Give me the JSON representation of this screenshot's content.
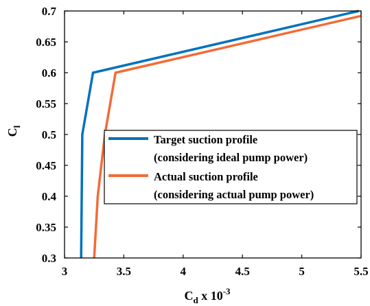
{
  "chart_data": {
    "type": "line",
    "x_axis": {
      "label_main": "C",
      "label_sub": "d",
      "label_suffix": " x 10",
      "label_sup": "-3",
      "lim": [
        3,
        5.5
      ],
      "ticks": [
        3,
        3.5,
        4,
        4.5,
        5,
        5.5
      ],
      "tick_labels": [
        "3",
        "3.5",
        "4",
        "4.5",
        "5",
        "5.5"
      ]
    },
    "y_axis": {
      "label_main": "C",
      "label_sub": "l",
      "lim": [
        0.3,
        0.7
      ],
      "ticks": [
        0.3,
        0.35,
        0.4,
        0.45,
        0.5,
        0.55,
        0.6,
        0.65,
        0.7
      ],
      "tick_labels": [
        "0.3",
        "0.35",
        "0.4",
        "0.45",
        "0.5",
        "0.55",
        "0.6",
        "0.65",
        "0.7"
      ]
    },
    "grid": false,
    "legend_position": "center-right",
    "series": [
      {
        "name_line1": "Target suction profile",
        "name_line2": "(considering ideal pump power)",
        "color": "#0072BD",
        "x": [
          3.14,
          3.15,
          3.24,
          5.48
        ],
        "y": [
          0.3,
          0.5,
          0.6,
          0.7
        ]
      },
      {
        "name_line1": "Actual suction profile",
        "name_line2": "(considering actual pump power)",
        "color": "#F26B38",
        "x": [
          3.25,
          3.28,
          3.34,
          3.43,
          5.5
        ],
        "y": [
          0.3,
          0.4,
          0.5,
          0.6,
          0.692
        ]
      }
    ]
  }
}
